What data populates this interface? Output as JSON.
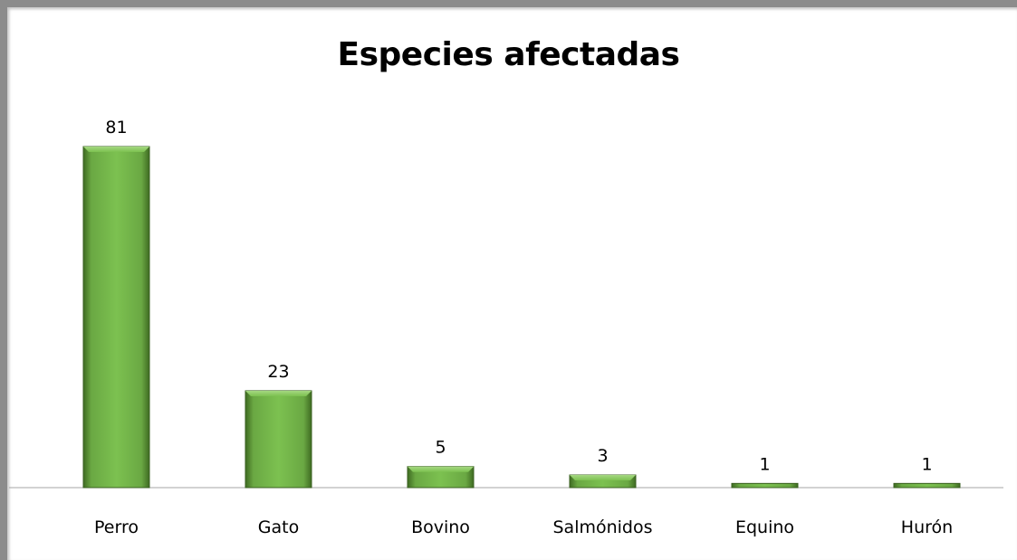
{
  "chart_data": {
    "type": "bar",
    "title": "Especies afectadas",
    "xlabel": "",
    "ylabel": "",
    "categories": [
      "Perro",
      "Gato",
      "Bovino",
      "Salmónidos",
      "Equino",
      "Hurón"
    ],
    "values": [
      81,
      23,
      5,
      3,
      1,
      1
    ],
    "ylim": [
      0,
      81
    ],
    "data_labels": true,
    "grid": false,
    "legend": "none",
    "bar_color": "#70ad47"
  }
}
